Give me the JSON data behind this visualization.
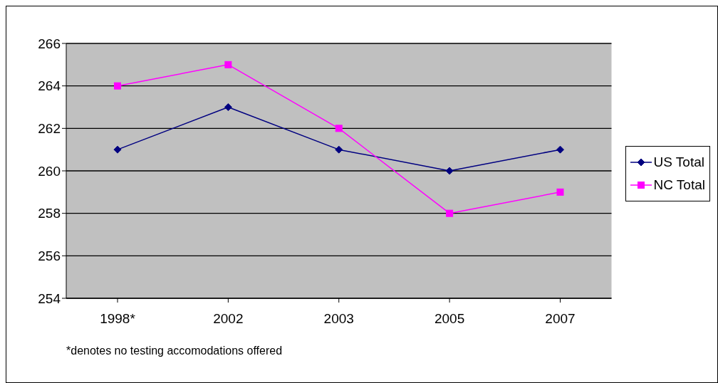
{
  "chart_data": {
    "type": "line",
    "categories": [
      "1998*",
      "2002",
      "2003",
      "2005",
      "2007"
    ],
    "series": [
      {
        "name": "US Total",
        "color": "#000080",
        "marker": "diamond",
        "values": [
          261,
          263,
          261,
          260,
          261
        ]
      },
      {
        "name": "NC Total",
        "color": "#ff00ff",
        "marker": "square",
        "values": [
          264,
          265,
          262,
          258,
          259
        ]
      }
    ],
    "ylim": [
      254,
      266
    ],
    "yticks": [
      254,
      256,
      258,
      260,
      262,
      264,
      266
    ],
    "grid": "y",
    "legend": "right",
    "annotations": [
      "*denotes no testing accomodations offered"
    ]
  }
}
